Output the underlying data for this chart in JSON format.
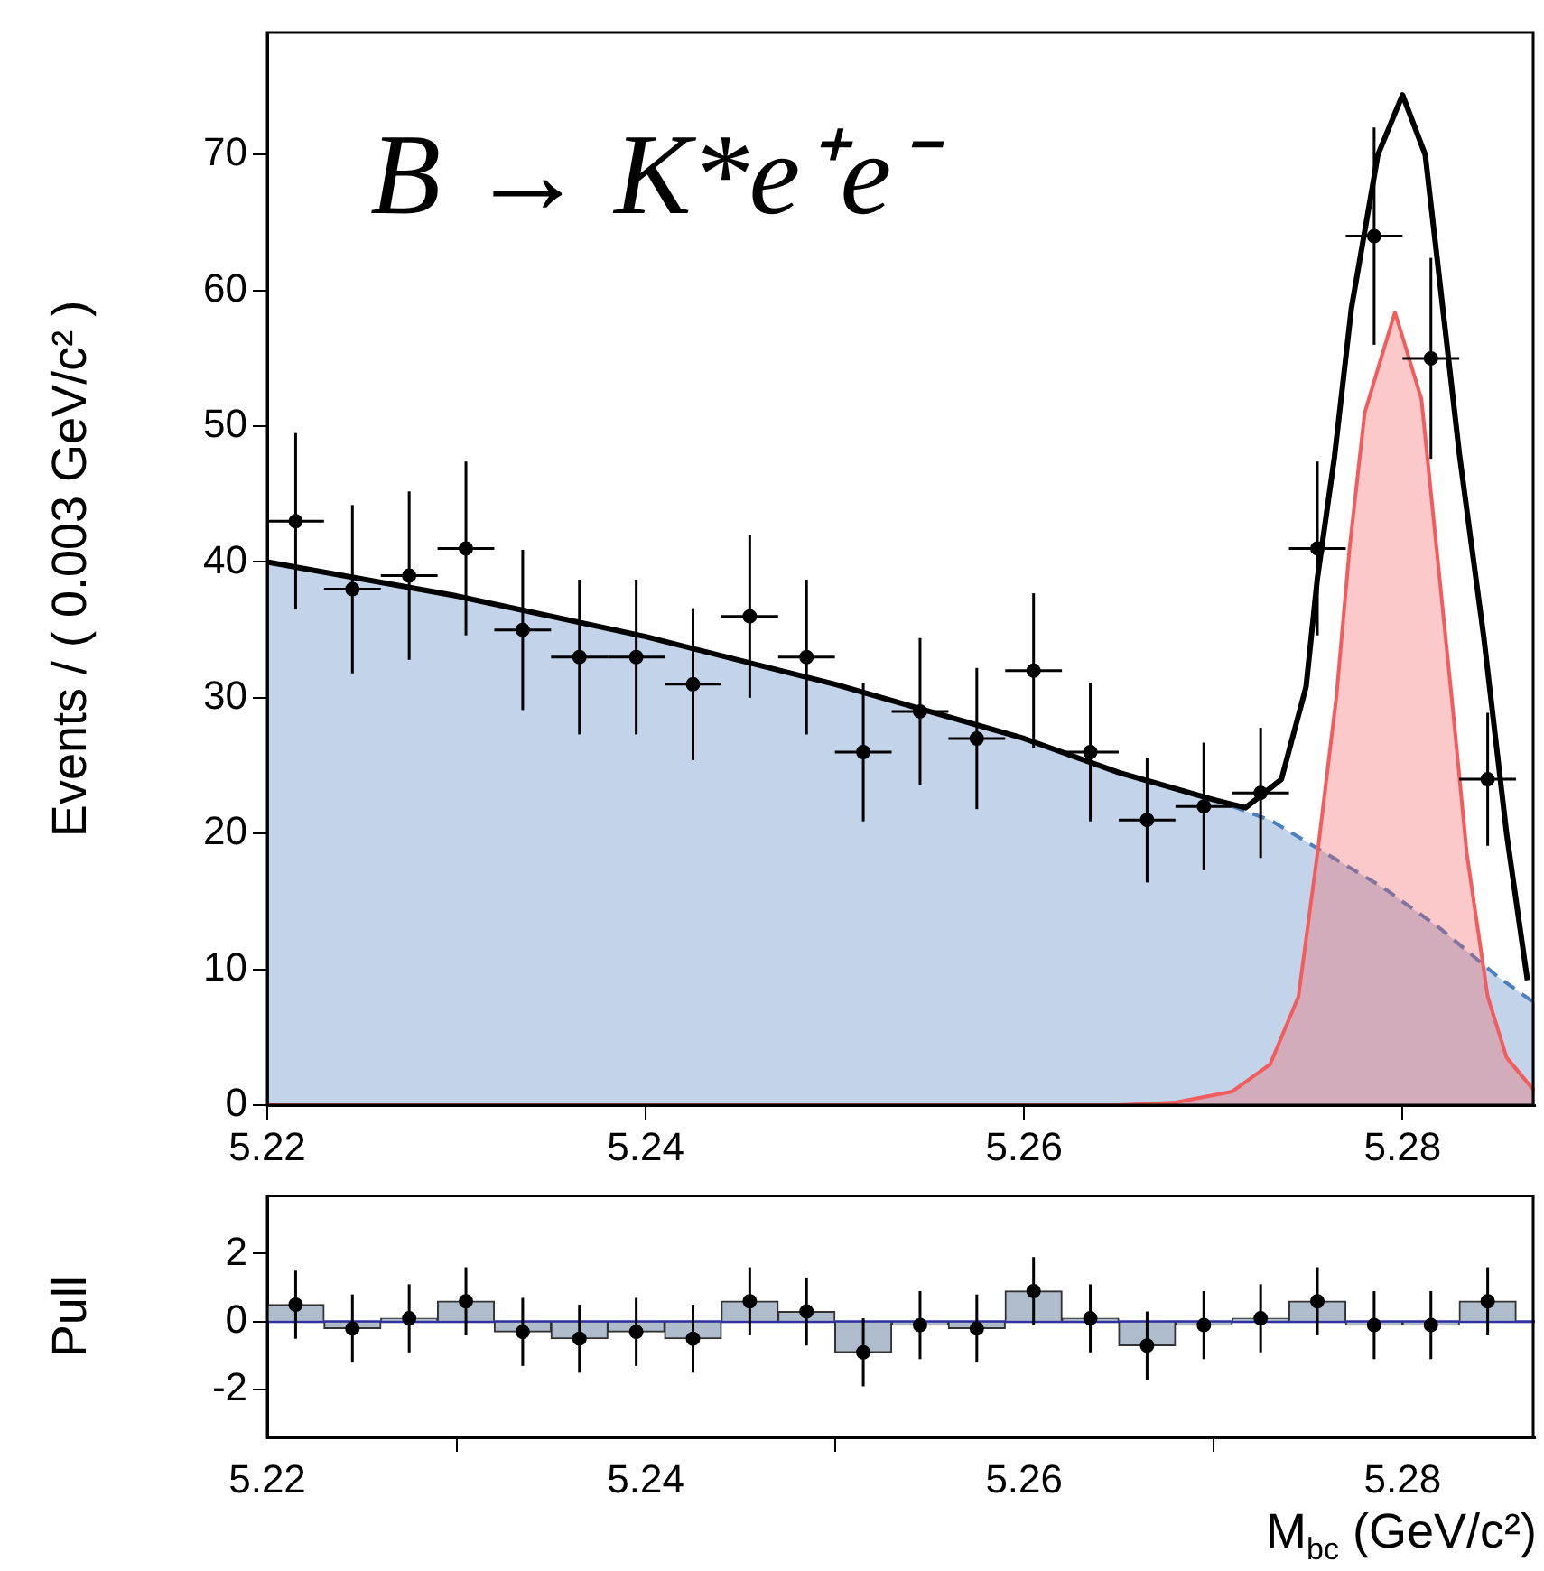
{
  "chart_data": [
    {
      "type": "line",
      "ylabel": "Events / ( 0.003 GeV/c² )",
      "annotations": [
        "B → K*e⁺e⁻"
      ],
      "xlim": [
        5.22,
        5.287
      ],
      "xticks": [
        5.22,
        5.24,
        5.26,
        5.28
      ],
      "ylim": [
        0,
        79
      ],
      "yticks": [
        0,
        10,
        20,
        30,
        40,
        50,
        60,
        70
      ],
      "series": [
        {
          "type": "area",
          "color": "#4a7fc0",
          "line_style": "dashed",
          "x": [
            5.22,
            5.23,
            5.24,
            5.25,
            5.26,
            5.265,
            5.27,
            5.273,
            5.276,
            5.279,
            5.282,
            5.285,
            5.287
          ],
          "values": [
            40,
            37.5,
            34.5,
            31,
            27,
            24.5,
            22.5,
            21,
            18.5,
            16,
            13,
            9.5,
            7.5
          ]
        },
        {
          "type": "area",
          "color": "#f25c5c",
          "x": [
            5.22,
            5.265,
            5.268,
            5.271,
            5.273,
            5.2745,
            5.2755,
            5.2765,
            5.2772,
            5.278,
            5.2796,
            5.281,
            5.2818,
            5.2826,
            5.2834,
            5.2845,
            5.2855,
            5.287
          ],
          "values": [
            0,
            0,
            0.2,
            1,
            3,
            8,
            18.5,
            30,
            41,
            51,
            58.4,
            52,
            41,
            30,
            18.5,
            8,
            3.5,
            1
          ]
        },
        {
          "type": "line",
          "color": "#000000",
          "x": [
            5.22,
            5.23,
            5.24,
            5.25,
            5.26,
            5.265,
            5.27,
            5.2717,
            5.2736,
            5.2749,
            5.2755,
            5.2764,
            5.2773,
            5.2787,
            5.28,
            5.2812,
            5.2818,
            5.283,
            5.2843,
            5.2855,
            5.2866
          ],
          "values": [
            40,
            37.5,
            34.5,
            31,
            27,
            24.5,
            22.5,
            21.9,
            24,
            30.8,
            38.8,
            47.7,
            58.7,
            70,
            74.4,
            70,
            62.7,
            48,
            34.4,
            20,
            9.2
          ]
        },
        {
          "type": "scatter",
          "marker": "circle",
          "color": "#000000",
          "x": [
            5.2215,
            5.2245,
            5.2275,
            5.2305,
            5.2335,
            5.2365,
            5.2395,
            5.2425,
            5.2455,
            5.2485,
            5.2515,
            5.2545,
            5.2575,
            5.2605,
            5.2635,
            5.2665,
            5.2695,
            5.2725,
            5.2755,
            5.2785,
            5.2815,
            5.2845
          ],
          "values": [
            43,
            38,
            39,
            41,
            35,
            33,
            33,
            31,
            36,
            33,
            26,
            29,
            27,
            32,
            26,
            21,
            22,
            23,
            41,
            64,
            55,
            24
          ],
          "errors": [
            6.5,
            6.2,
            6.2,
            6.4,
            5.9,
            5.7,
            5.7,
            5.6,
            6,
            5.7,
            5.1,
            5.4,
            5.2,
            5.7,
            5.1,
            4.6,
            4.7,
            4.8,
            6.4,
            8,
            7.4,
            4.9
          ],
          "xerrors": [
            0.0015,
            0.0015,
            0.0015,
            0.0015,
            0.0015,
            0.0015,
            0.0015,
            0.0015,
            0.0015,
            0.0015,
            0.0015,
            0.0015,
            0.0015,
            0.0015,
            0.0015,
            0.0015,
            0.0015,
            0.0015,
            0.0015,
            0.0015,
            0.0015,
            0.0015
          ]
        }
      ]
    },
    {
      "type": "bar",
      "ylabel": "Pull",
      "xlabel": "M$_{bc}$ (GeV/c²)",
      "xlim": [
        5.22,
        5.287
      ],
      "xticks": [
        5.22,
        5.24,
        5.26,
        5.28
      ],
      "ylim": [
        -3.4,
        3.7
      ],
      "yticks": [
        -2,
        0,
        2
      ],
      "ref_lines": [
        {
          "axis": "y",
          "value": 0,
          "color": "#3030a0"
        }
      ],
      "series": [
        {
          "type": "bar",
          "color": "#aebccb",
          "x": [
            5.2215,
            5.2245,
            5.2275,
            5.2305,
            5.2335,
            5.2365,
            5.2395,
            5.2425,
            5.2455,
            5.2485,
            5.2515,
            5.2545,
            5.2575,
            5.2605,
            5.2635,
            5.2665,
            5.2695,
            5.2725,
            5.2755,
            5.2785,
            5.2815,
            5.2845
          ],
          "values": [
            0.5,
            -0.2,
            0.1,
            0.6,
            -0.3,
            -0.5,
            -0.3,
            -0.5,
            0.6,
            0.3,
            -0.9,
            -0.1,
            -0.2,
            0.9,
            0.1,
            -0.7,
            -0.1,
            0.1,
            0.6,
            -0.1,
            -0.1,
            0.6
          ]
        },
        {
          "type": "scatter",
          "marker": "circle",
          "color": "#000000",
          "x": [
            5.2215,
            5.2245,
            5.2275,
            5.2305,
            5.2335,
            5.2365,
            5.2395,
            5.2425,
            5.2455,
            5.2485,
            5.2515,
            5.2545,
            5.2575,
            5.2605,
            5.2635,
            5.2665,
            5.2695,
            5.2725,
            5.2755,
            5.2785,
            5.2815,
            5.2845
          ],
          "values": [
            0.5,
            -0.2,
            0.1,
            0.6,
            -0.3,
            -0.5,
            -0.3,
            -0.5,
            0.6,
            0.3,
            -0.9,
            -0.1,
            -0.2,
            0.9,
            0.1,
            -0.7,
            -0.1,
            0.1,
            0.6,
            -0.1,
            -0.1,
            0.6
          ],
          "errors": [
            1,
            1,
            1,
            1,
            1,
            1,
            1,
            1,
            1,
            1,
            1,
            1,
            1,
            1,
            1,
            1,
            1,
            1,
            1,
            1,
            1,
            1
          ]
        }
      ]
    }
  ]
}
